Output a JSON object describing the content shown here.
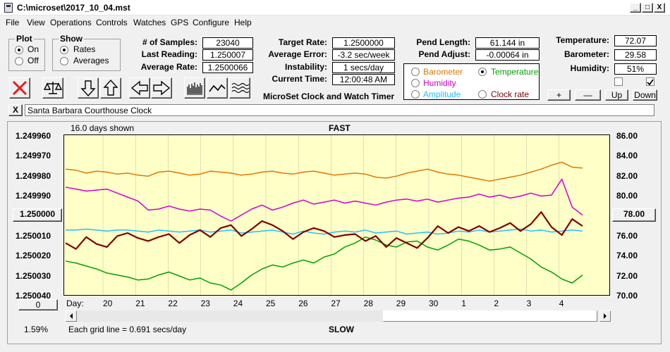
{
  "window": {
    "title": "C:\\microset\\2017_10_04.mst",
    "btn_minimize": "_",
    "btn_maximize": "□",
    "btn_close": "X"
  },
  "menu": [
    "File",
    "View",
    "Operations",
    "Controls",
    "Watches",
    "GPS",
    "Configure",
    "Help"
  ],
  "plot_group": {
    "title": "Plot",
    "options": [
      "On",
      "Off"
    ],
    "selected": "On"
  },
  "show_group": {
    "title": "Show",
    "options": [
      "Rates",
      "Averages"
    ],
    "selected": "Rates"
  },
  "stats": {
    "samples_label": "# of Samples:",
    "samples": "23040",
    "last_reading_label": "Last Reading:",
    "last_reading": "1.250007",
    "average_rate_label": "Average Rate:",
    "average_rate": "1.2500066",
    "target_rate_label": "Target Rate:",
    "target_rate": "1.2500000",
    "average_error_label": "Average Error:",
    "average_error": "-3.2 sec/week",
    "instability_label": "Instability:",
    "instability": "1 secs/day",
    "current_time_label": "Current Time:",
    "current_time": "12:00:48 AM",
    "pend_length_label": "Pend Length:",
    "pend_length": "61.144 in",
    "pend_adjust_label": "Pend Adjust:",
    "pend_adjust": "-0.00064 in"
  },
  "environment": {
    "temperature_label": "Temperature:",
    "temperature": "72.07",
    "barometer_label": "Barometer:",
    "barometer": "29.58",
    "humidity_label": "Humidity:",
    "humidity": "51%"
  },
  "app_title": "MicroSet Clock and Watch Timer",
  "sensor_options": [
    {
      "label": "Barometer",
      "color": "#e07800",
      "selected": false
    },
    {
      "label": "Temperature",
      "color": "#00a000",
      "selected": true
    },
    {
      "label": "Humidity",
      "color": "#d000d0",
      "selected": false
    },
    {
      "label": "Amplitude",
      "color": "#20c0ff",
      "selected": false
    },
    {
      "label": "Clock rate",
      "color": "#800000",
      "selected": false
    }
  ],
  "adjust_buttons": {
    "plus": "+",
    "minus": "—",
    "up": "Up",
    "down": "Down"
  },
  "toolbar_icons": [
    "clear-icon",
    "balance-icon",
    "arrow-down-icon",
    "arrow-up-icon",
    "arrow-left-icon",
    "arrow-right-icon",
    "bar-graph-icon",
    "line-graph-icon",
    "wave-graph-icon"
  ],
  "clock_name": {
    "clear_label": "X",
    "value": "Santa Barbara Courthouse Clock"
  },
  "chart_data": {
    "type": "line",
    "days_shown": "16.0 days shown",
    "top_label": "FAST",
    "bottom_label": "SLOW",
    "grid_line_text": "Each grid line = 0.691 secs/day",
    "y_left_ticks": [
      "1.249960",
      "1.249970",
      "1.249980",
      "1.249990",
      "1.250000",
      "1.250010",
      "1.250020",
      "1.250030",
      "1.250040"
    ],
    "y_left_selected": "1.250000",
    "y_right_ticks": [
      "86.00",
      "84.00",
      "82.00",
      "80.00",
      "78.00",
      "76.00",
      "74.00",
      "72.00",
      "70.00"
    ],
    "y_right_selected": "78.00",
    "x_prefix": "Day:",
    "x_ticks": [
      "20",
      "21",
      "22",
      "23",
      "24",
      "25",
      "26",
      "27",
      "28",
      "29",
      "30",
      "1",
      "2",
      "3",
      "4"
    ],
    "left_button": "0",
    "percent": "1.59%",
    "series": [
      {
        "color": "#e07800",
        "values": [
          82.6,
          82.5,
          82.2,
          82.4,
          82.3,
          82.1,
          82.2,
          82.0,
          81.9,
          82.3,
          82.4,
          82.2,
          82.0,
          82.1,
          82.4,
          82.3,
          82.2,
          82.0,
          82.1,
          82.3,
          82.4,
          82.2,
          82.1,
          82.3,
          82.4,
          82.2,
          82.0,
          82.1,
          82.2,
          82.1,
          81.8,
          81.7,
          81.9,
          82.2,
          82.4,
          82.6,
          82.3,
          82.1,
          82.0,
          81.8,
          81.6,
          81.4,
          81.6,
          81.8,
          82.0,
          82.3,
          82.6,
          83.0,
          83.3,
          82.8,
          82.7
        ]
      },
      {
        "color": "#d000d0",
        "values": [
          80.8,
          80.6,
          80.4,
          80.5,
          80.6,
          80.2,
          79.8,
          79.4,
          78.5,
          78.6,
          78.9,
          78.6,
          78.4,
          78.6,
          78.5,
          77.9,
          77.4,
          78.0,
          78.6,
          79.0,
          78.5,
          78.8,
          79.2,
          79.5,
          79.1,
          79.3,
          79.5,
          79.2,
          79.4,
          79.2,
          79.0,
          79.3,
          79.5,
          79.6,
          79.4,
          79.6,
          79.3,
          79.5,
          79.7,
          79.8,
          80.1,
          79.8,
          80.0,
          79.7,
          79.9,
          80.2,
          79.9,
          80.0,
          81.6,
          78.8,
          78.0
        ]
      },
      {
        "color": "#20c0ff",
        "values": [
          76.5,
          76.5,
          76.6,
          76.5,
          76.4,
          76.5,
          76.5,
          76.4,
          76.3,
          76.5,
          76.4,
          76.3,
          76.4,
          76.5,
          76.3,
          76.4,
          76.5,
          76.2,
          76.3,
          76.4,
          76.5,
          76.3,
          76.1,
          76.4,
          76.2,
          76.1,
          76.3,
          76.4,
          76.3,
          76.5,
          76.2,
          76.3,
          76.4,
          76.1,
          76.2,
          76.3,
          76.1,
          76.2,
          76.4,
          76.3,
          76.5,
          76.3,
          76.4,
          76.5,
          76.6,
          76.4,
          76.5,
          76.3,
          76.4,
          76.5,
          76.4
        ]
      },
      {
        "color": "#00a000",
        "values": [
          73.4,
          73.2,
          72.9,
          72.6,
          72.2,
          72.0,
          71.8,
          71.5,
          71.6,
          72.0,
          72.3,
          71.9,
          71.5,
          71.7,
          71.2,
          71.0,
          70.5,
          71.2,
          72.0,
          72.6,
          73.0,
          72.8,
          73.2,
          73.5,
          73.2,
          73.8,
          74.1,
          74.8,
          75.2,
          75.8,
          75.5,
          75.0,
          74.8,
          75.3,
          75.4,
          74.8,
          74.5,
          75.0,
          75.6,
          75.4,
          75.0,
          74.5,
          74.6,
          74.8,
          74.2,
          73.6,
          72.8,
          72.3,
          71.6,
          71.2,
          72.0
        ]
      },
      {
        "color": "#800000",
        "values": [
          75.2,
          74.6,
          75.8,
          75.1,
          74.8,
          75.9,
          76.2,
          75.7,
          75.4,
          75.8,
          76.1,
          75.2,
          76.0,
          76.5,
          75.8,
          76.7,
          77.0,
          75.9,
          76.6,
          77.4,
          77.0,
          76.4,
          75.6,
          76.3,
          76.7,
          76.4,
          75.8,
          76.0,
          76.1,
          75.4,
          75.9,
          74.8,
          75.7,
          75.2,
          74.7,
          75.7,
          76.9,
          76.2,
          76.8,
          76.4,
          76.9,
          76.3,
          76.7,
          77.2,
          76.4,
          77.1,
          78.3,
          76.8,
          76.0,
          77.6,
          76.9
        ]
      }
    ]
  }
}
